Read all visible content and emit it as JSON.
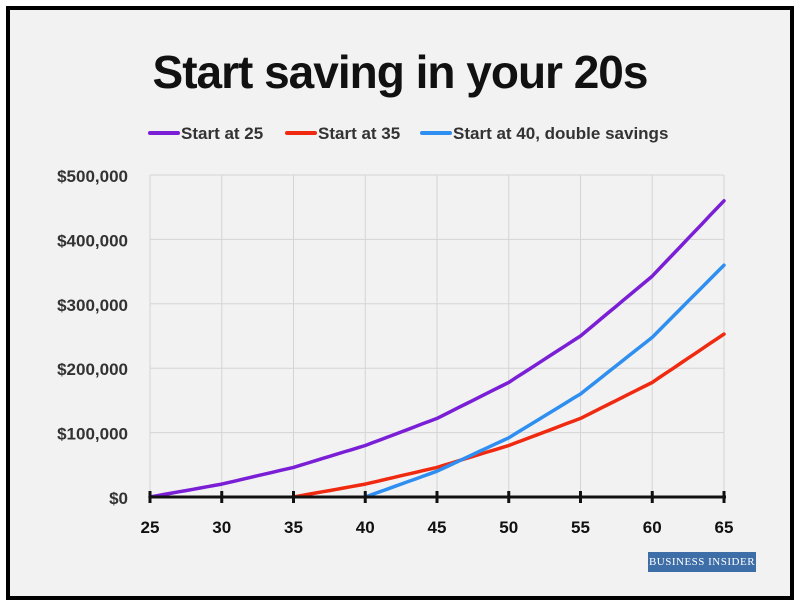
{
  "title": "Start saving in your 20s",
  "brand": "BUSINESS INSIDER",
  "colors": {
    "background": "#f2f2f2",
    "grid": "#d4d4d4",
    "axis": "#111111",
    "text": "#333333"
  },
  "chart_data": {
    "type": "line",
    "title": "Start saving in your 20s",
    "xlabel": "",
    "ylabel": "",
    "xlim": [
      25,
      65
    ],
    "ylim": [
      0,
      500000
    ],
    "x_ticks": [
      25,
      30,
      35,
      40,
      45,
      50,
      55,
      60,
      65
    ],
    "x_tick_labels": [
      "25",
      "30",
      "35",
      "40",
      "45",
      "50",
      "55",
      "60",
      "65"
    ],
    "y_ticks": [
      0,
      100000,
      200000,
      300000,
      400000,
      500000
    ],
    "y_tick_labels": [
      "$0",
      "$100,000",
      "$200,000",
      "$300,000",
      "$400,000",
      "$500,000"
    ],
    "grid": true,
    "legend_position": "top",
    "series": [
      {
        "name": "Start at 25",
        "color": "#7a1fd6",
        "x": [
          25,
          30,
          35,
          40,
          45,
          50,
          55,
          60,
          65
        ],
        "values": [
          0,
          20000,
          46000,
          80000,
          122000,
          178000,
          250000,
          343000,
          460000
        ]
      },
      {
        "name": "Start at 35",
        "color": "#f02a10",
        "x": [
          35,
          40,
          45,
          50,
          55,
          60,
          65
        ],
        "values": [
          0,
          20000,
          46000,
          80000,
          122000,
          178000,
          253000
        ]
      },
      {
        "name": "Start at 40, double savings",
        "color": "#2f8ff0",
        "x": [
          40,
          45,
          50,
          55,
          60,
          65
        ],
        "values": [
          0,
          40000,
          92000,
          160000,
          248000,
          360000
        ]
      }
    ]
  }
}
